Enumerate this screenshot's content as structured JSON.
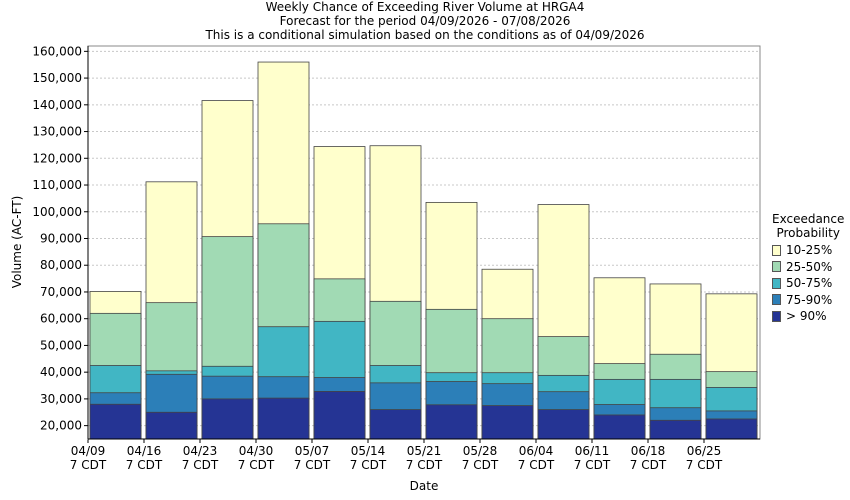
{
  "chart_data": {
    "type": "bar",
    "title": "Weekly Chance of Exceeding River Volume at HRGA4",
    "subtitle1": "Forecast for the period 04/09/2026 - 07/08/2026",
    "subtitle2": "This is a conditional simulation based on the conditions as of 04/09/2026",
    "xlabel": "Date",
    "ylabel": "Volume (AC-FT)",
    "ylim": [
      15000,
      162000
    ],
    "yticks": [
      20000,
      30000,
      40000,
      50000,
      60000,
      70000,
      80000,
      90000,
      100000,
      110000,
      120000,
      130000,
      140000,
      150000,
      160000
    ],
    "ytick_labels": [
      "20,000",
      "30,000",
      "40,000",
      "50,000",
      "60,000",
      "70,000",
      "80,000",
      "90,000",
      "100,000",
      "110,000",
      "120,000",
      "130,000",
      "140,000",
      "150,000",
      "160,000"
    ],
    "grid": true,
    "categories": [
      [
        "04/09",
        "7 CDT"
      ],
      [
        "04/16",
        "7 CDT"
      ],
      [
        "04/23",
        "7 CDT"
      ],
      [
        "04/30",
        "7 CDT"
      ],
      [
        "05/07",
        "7 CDT"
      ],
      [
        "05/14",
        "7 CDT"
      ],
      [
        "05/21",
        "7 CDT"
      ],
      [
        "05/28",
        "7 CDT"
      ],
      [
        "06/04",
        "7 CDT"
      ],
      [
        "06/11",
        "7 CDT"
      ],
      [
        "06/18",
        "7 CDT"
      ],
      [
        "06/25",
        "7 CDT"
      ]
    ],
    "legend": {
      "title": [
        "Exceedance",
        "Probability"
      ],
      "placement": "right",
      "items": [
        {
          "label": "10-25%",
          "color": "#ffffcc"
        },
        {
          "label": "25-50%",
          "color": "#a1dab4"
        },
        {
          "label": "50-75%",
          "color": "#41b6c4"
        },
        {
          "label": "75-90%",
          "color": "#2c7fb8"
        },
        {
          "label": "> 90%",
          "color": "#253494"
        }
      ]
    },
    "series": [
      {
        "name": "> 90%",
        "color": "#253494",
        "values": [
          28000,
          25000,
          30000,
          30300,
          32800,
          26000,
          27800,
          27500,
          26000,
          24000,
          22000,
          22500
        ]
      },
      {
        "name": "75-90%",
        "color": "#2c7fb8",
        "values": [
          32300,
          39200,
          38500,
          38300,
          38000,
          36000,
          36500,
          35700,
          32700,
          27900,
          26700,
          25500
        ]
      },
      {
        "name": "50-75%",
        "color": "#41b6c4",
        "values": [
          42500,
          40500,
          42200,
          57000,
          59000,
          42500,
          39800,
          39800,
          38800,
          37300,
          37300,
          34300
        ]
      },
      {
        "name": "25-50%",
        "color": "#a1dab4",
        "values": [
          62000,
          66000,
          90700,
          95500,
          74900,
          66500,
          63500,
          60000,
          53300,
          43200,
          46700,
          40200
        ]
      },
      {
        "name": "10-25%",
        "color": "#ffffcc",
        "values": [
          70200,
          111200,
          141600,
          156000,
          124400,
          124700,
          103500,
          78500,
          102700,
          75300,
          73000,
          69300
        ]
      }
    ]
  }
}
